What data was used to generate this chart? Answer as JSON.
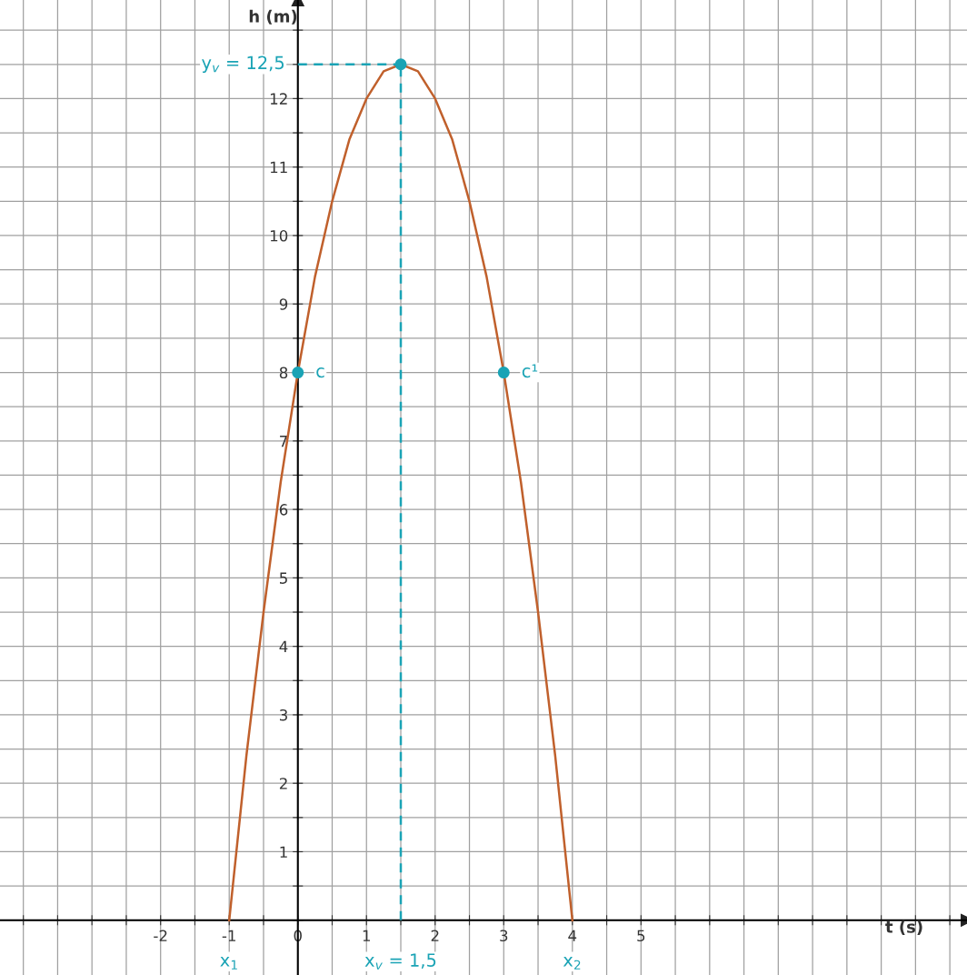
{
  "chart_data": {
    "type": "line",
    "xlabel": "t (s)",
    "ylabel": "h (m)",
    "xlim": [
      -4.34,
      9.75
    ],
    "ylim": [
      -0.8,
      13.44
    ],
    "xticks": [
      {
        "value": -4,
        "label": null
      },
      {
        "value": -3.5,
        "label": null
      },
      {
        "value": -3,
        "label": null
      },
      {
        "value": -2.5,
        "label": null
      },
      -2,
      {
        "value": -1.5,
        "label": null
      },
      -1,
      {
        "value": -0.5,
        "label": null
      },
      0,
      {
        "value": 0.5,
        "label": null
      },
      1,
      {
        "value": 1.5,
        "label": null
      },
      2,
      {
        "value": 2.5,
        "label": null
      },
      3,
      {
        "value": 3.5,
        "label": null
      },
      4,
      {
        "value": 4.5,
        "label": null
      },
      5,
      {
        "value": 5.5,
        "label": null
      },
      {
        "value": 6,
        "label": null
      },
      {
        "value": 6.5,
        "label": null
      },
      {
        "value": 7,
        "label": null
      },
      {
        "value": 7.5,
        "label": null
      },
      {
        "value": 8,
        "label": null
      },
      {
        "value": 8.5,
        "label": null
      },
      {
        "value": 9,
        "label": null
      },
      {
        "value": 9.5,
        "label": null
      }
    ],
    "yticks": [
      {
        "value": 0,
        "label": null
      },
      {
        "value": 0.5,
        "label": null
      },
      1,
      {
        "value": 1.5,
        "label": null
      },
      2,
      {
        "value": 2.5,
        "label": null
      },
      3,
      {
        "value": 3.5,
        "label": null
      },
      4,
      {
        "value": 4.5,
        "label": null
      },
      5,
      {
        "value": 5.5,
        "label": null
      },
      6,
      {
        "value": 6.5,
        "label": null
      },
      7,
      {
        "value": 7.5,
        "label": null
      },
      8,
      {
        "value": 8.5,
        "label": null
      },
      9,
      {
        "value": 9.5,
        "label": null
      },
      10,
      {
        "value": 10.5,
        "label": null
      },
      11,
      {
        "value": 11.5,
        "label": null
      },
      12,
      {
        "value": 12.5,
        "label": null
      },
      {
        "value": 13,
        "label": null
      }
    ],
    "grid": true,
    "series": [
      {
        "color": "#c0602c",
        "line_style": "solid",
        "marker": "none",
        "x": [
          -1,
          -0.75,
          -0.5,
          -0.25,
          0,
          0.25,
          0.5,
          0.75,
          1,
          1.25,
          1.5,
          1.75,
          2,
          2.25,
          2.5,
          2.75,
          3,
          3.25,
          3.5,
          3.75,
          4
        ],
        "values": [
          0,
          2.4,
          4.5,
          6.4,
          8,
          9.4,
          10.5,
          11.4,
          12,
          12.4,
          12.5,
          12.4,
          12,
          11.4,
          10.5,
          9.4,
          8,
          6.4,
          4.5,
          2.4,
          0
        ]
      },
      {
        "color": "#1aa3b5",
        "line_style": "dashed",
        "marker": "none",
        "x": [
          0,
          1.5
        ],
        "values": [
          12.5,
          12.5
        ]
      },
      {
        "color": "#1aa3b5",
        "line_style": "dashed",
        "marker": "none",
        "x": [
          1.5,
          1.5
        ],
        "values": [
          0,
          12.5
        ]
      },
      {
        "type": "scatter",
        "color": "#1aa3b5",
        "marker": "circle",
        "x": [
          0,
          1.5,
          3
        ],
        "values": [
          8,
          12.5,
          8
        ]
      }
    ],
    "annotations": [
      {
        "text": "c",
        "x": 0,
        "y": 8
      },
      {
        "text": "c¹",
        "x": 3,
        "y": 8
      },
      {
        "text": "y$_{v}$ = 12,5",
        "x": 0,
        "y": 12.5
      },
      {
        "text": "x$_{v}$ = 1,5",
        "x": 1.5,
        "y": 0
      },
      {
        "text": "x$_{1}$",
        "x": -1,
        "y": 0
      },
      {
        "text": "x$_{2}$",
        "x": 4,
        "y": 0
      }
    ]
  }
}
